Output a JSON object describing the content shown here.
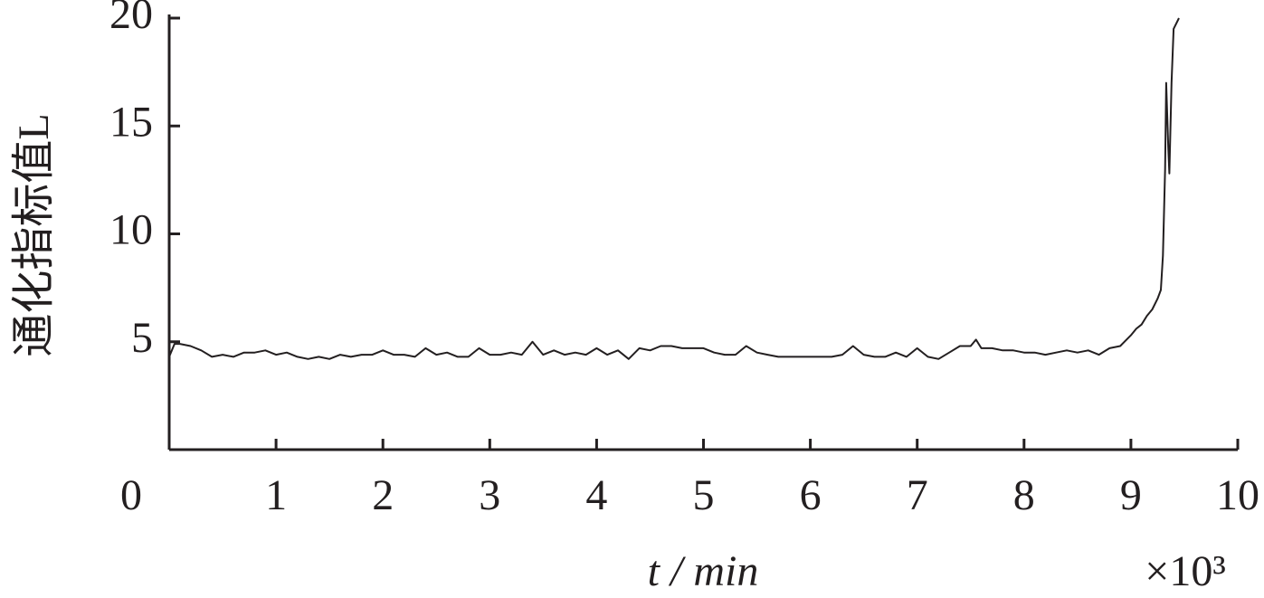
{
  "chart_data": {
    "type": "line",
    "ylabel": "通化指标值L",
    "xlabel": "t / min",
    "x_multiplier": "×10³",
    "xlim": [
      0,
      10
    ],
    "xticks": [
      0,
      1,
      2,
      3,
      4,
      5,
      6,
      7,
      8,
      9,
      10
    ],
    "ylim": [
      0,
      20
    ],
    "yticks": [
      5,
      10,
      15,
      20
    ],
    "series": [
      {
        "color": "#231f20",
        "x": [
          0,
          0.05,
          0.1,
          0.2,
          0.3,
          0.4,
          0.5,
          0.6,
          0.7,
          0.8,
          0.9,
          1.0,
          1.1,
          1.2,
          1.3,
          1.4,
          1.5,
          1.6,
          1.7,
          1.8,
          1.9,
          2.0,
          2.1,
          2.2,
          2.3,
          2.4,
          2.5,
          2.6,
          2.7,
          2.8,
          2.9,
          3.0,
          3.1,
          3.2,
          3.3,
          3.4,
          3.5,
          3.6,
          3.7,
          3.8,
          3.9,
          4.0,
          4.1,
          4.2,
          4.3,
          4.4,
          4.5,
          4.6,
          4.7,
          4.8,
          4.9,
          5.0,
          5.1,
          5.2,
          5.3,
          5.4,
          5.5,
          5.6,
          5.7,
          5.8,
          5.9,
          6.0,
          6.1,
          6.2,
          6.3,
          6.4,
          6.5,
          6.6,
          6.7,
          6.8,
          6.9,
          7.0,
          7.1,
          7.2,
          7.3,
          7.4,
          7.5,
          7.55,
          7.6,
          7.7,
          7.8,
          7.9,
          8.0,
          8.1,
          8.2,
          8.3,
          8.4,
          8.5,
          8.6,
          8.7,
          8.8,
          8.9,
          9.0,
          9.05,
          9.1,
          9.15,
          9.2,
          9.25,
          9.28,
          9.3,
          9.32,
          9.33,
          9.35,
          9.36,
          9.38,
          9.4,
          9.45
        ],
        "values": [
          4.3,
          4.9,
          4.9,
          4.8,
          4.6,
          4.3,
          4.4,
          4.3,
          4.5,
          4.5,
          4.6,
          4.4,
          4.5,
          4.3,
          4.2,
          4.3,
          4.2,
          4.4,
          4.3,
          4.4,
          4.4,
          4.6,
          4.4,
          4.4,
          4.3,
          4.7,
          4.4,
          4.5,
          4.3,
          4.3,
          4.7,
          4.4,
          4.4,
          4.5,
          4.4,
          5.0,
          4.4,
          4.6,
          4.4,
          4.5,
          4.4,
          4.7,
          4.4,
          4.6,
          4.2,
          4.7,
          4.6,
          4.8,
          4.8,
          4.7,
          4.7,
          4.7,
          4.5,
          4.4,
          4.4,
          4.8,
          4.5,
          4.4,
          4.3,
          4.3,
          4.3,
          4.3,
          4.3,
          4.3,
          4.4,
          4.8,
          4.4,
          4.3,
          4.3,
          4.5,
          4.3,
          4.7,
          4.3,
          4.2,
          4.5,
          4.8,
          4.8,
          5.1,
          4.7,
          4.7,
          4.6,
          4.6,
          4.5,
          4.5,
          4.4,
          4.5,
          4.6,
          4.5,
          4.6,
          4.4,
          4.7,
          4.8,
          5.3,
          5.6,
          5.8,
          6.2,
          6.5,
          7.0,
          7.4,
          9,
          13,
          17,
          14,
          12.8,
          17,
          19.5,
          20
        ]
      }
    ]
  }
}
